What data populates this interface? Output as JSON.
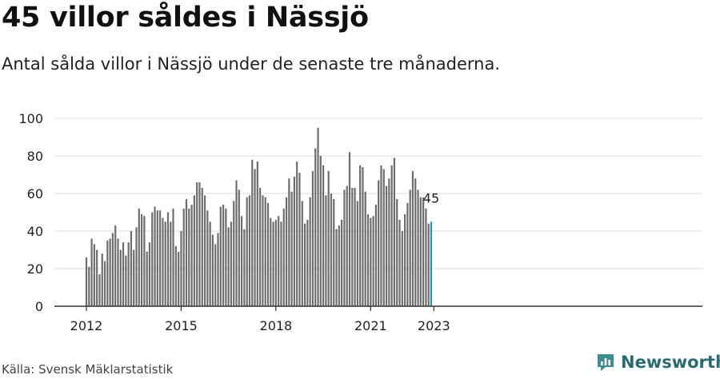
{
  "title": "45 villor såldes i Nässjö",
  "subtitle": "Antal sålda villor i Nässjö under de senaste tre månaderna.",
  "source": "Källa: Svensk Mäklarstatistik",
  "brand": {
    "name": "Newsworthy",
    "icon": "newsworthy-logo-icon",
    "color": "#2a6b73"
  },
  "colors": {
    "bar": "#6e6e6e",
    "highlight": "#1a9bb2",
    "grid": "#dddddd",
    "axis": "#333333"
  },
  "chart_data": {
    "type": "bar",
    "title": "45 villor såldes i Nässjö",
    "xlabel": "",
    "ylabel": "",
    "ylim": [
      0,
      100
    ],
    "yticks": [
      0,
      20,
      40,
      60,
      80,
      100
    ],
    "xticks": [
      "2012",
      "2015",
      "2018",
      "2021",
      "2023"
    ],
    "grid": true,
    "start": "2012-01",
    "frequency": "monthly",
    "values": [
      26,
      21,
      36,
      33,
      30,
      17,
      28,
      24,
      35,
      36,
      39,
      43,
      36,
      30,
      34,
      27,
      34,
      40,
      30,
      42,
      52,
      49,
      48,
      29,
      34,
      50,
      53,
      51,
      51,
      47,
      45,
      50,
      45,
      52,
      32,
      29,
      40,
      52,
      57,
      52,
      54,
      59,
      66,
      66,
      63,
      59,
      51,
      45,
      38,
      33,
      39,
      53,
      54,
      52,
      42,
      45,
      56,
      67,
      62,
      48,
      41,
      58,
      59,
      78,
      73,
      77,
      63,
      59,
      58,
      55,
      47,
      45,
      46,
      48,
      45,
      52,
      58,
      68,
      61,
      69,
      77,
      71,
      56,
      44,
      46,
      58,
      72,
      84,
      95,
      80,
      75,
      59,
      72,
      60,
      57,
      41,
      43,
      46,
      62,
      64,
      82,
      63,
      63,
      56,
      75,
      74,
      61,
      49,
      47,
      48,
      54,
      67,
      75,
      73,
      64,
      68,
      75,
      79,
      57,
      46,
      40,
      49,
      55,
      62,
      72,
      68,
      62,
      58,
      58,
      52,
      44,
      45
    ],
    "highlight_last": true,
    "last_label": "45"
  }
}
